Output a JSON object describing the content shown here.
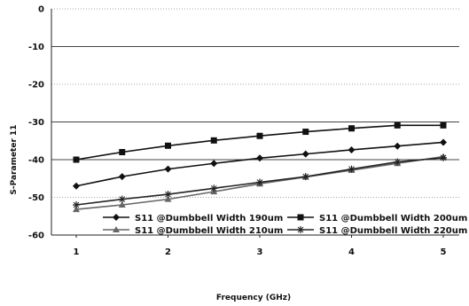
{
  "chart_data": {
    "type": "line",
    "title": "",
    "xlabel": "Frequency (GHz)",
    "ylabel": "S-Parameter 11",
    "x": [
      1,
      1.5,
      2,
      2.5,
      3,
      3.5,
      4,
      4.5,
      5
    ],
    "x_ticks": [
      "1",
      "2",
      "3",
      "4",
      "5"
    ],
    "y_ticks": [
      "0",
      "-10",
      "-20",
      "-30",
      "-40",
      "-50",
      "-60"
    ],
    "ylim": [
      -60,
      0
    ],
    "grid": "horizontal dotted",
    "legend_placement": "bottom-inside",
    "series": [
      {
        "name": "S11 @Dumbbell Width 190um",
        "marker": "diamond",
        "color": "#111111",
        "values": [
          -47,
          -44.5,
          -42.5,
          -41,
          -39.6,
          -38.5,
          -37.4,
          -36.4,
          -35.4
        ]
      },
      {
        "name": "S11 @Dumbbell Width 200um",
        "marker": "square",
        "color": "#111111",
        "values": [
          -40,
          -38,
          -36.3,
          -34.9,
          -33.7,
          -32.6,
          -31.7,
          -30.9,
          -30.9
        ]
      },
      {
        "name": "S11 @Dumbbell Width 210um",
        "marker": "triangle",
        "color": "#666666",
        "values": [
          -53.2,
          -52,
          -50.5,
          -48.5,
          -46.4,
          -44.6,
          -42.8,
          -41,
          -39.2
        ]
      },
      {
        "name": "S11 @Dumbbell Width 220um",
        "marker": "star",
        "color": "#222222",
        "values": [
          -52,
          -50.5,
          -49.2,
          -47.6,
          -46,
          -44.5,
          -42.5,
          -40.6,
          -39.5
        ]
      }
    ]
  }
}
